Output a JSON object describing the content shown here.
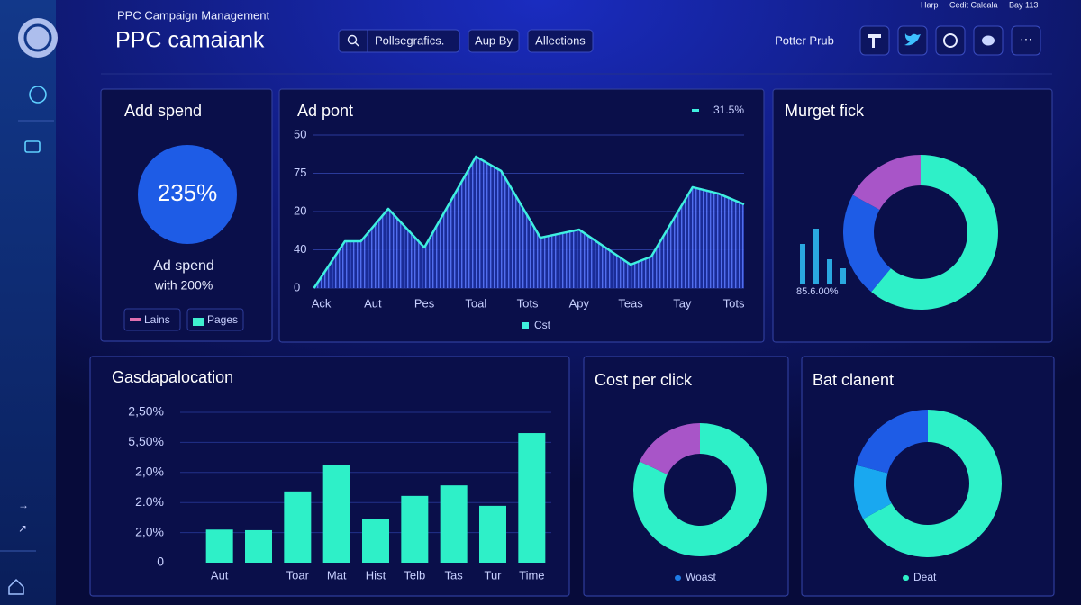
{
  "header": {
    "supertitle": "PPC Campaign Management",
    "title": "PPC camaiank",
    "search": "Pollsegrafics.",
    "buttons": [
      "Aup By",
      "Allections"
    ],
    "user": "Potter Prub",
    "top_links": [
      "Harp",
      "Cedit Calcala",
      "Bay 113"
    ]
  },
  "chart_data": [
    {
      "type": "kpi",
      "title": "Add spend",
      "values": [
        235
      ],
      "value_labels": [
        "235%"
      ],
      "color": "#1e5ce6",
      "label": "Ad spend",
      "sublabel": "with 200%",
      "legend": [
        {
          "name": "Lains",
          "color": "#e070b0"
        },
        {
          "name": "Pages",
          "color": "#40f0d0"
        }
      ]
    },
    {
      "type": "line",
      "title": "Ad pont",
      "annotation": "31.5%",
      "x": [
        -0.14,
        0.46,
        0.77,
        1.3,
        2.0,
        3.0,
        3.49,
        4.25,
        5.0,
        6.0,
        6.4,
        7.2,
        7.7,
        8.2
      ],
      "series": [
        {
          "name": "Cst",
          "color": "#3ff0e0",
          "values": [
            0,
            30.6,
            30.6,
            51.8,
            26.5,
            85.9,
            76.5,
            32.9,
            38.2,
            15.3,
            20.6,
            65.9,
            61.8,
            54.7
          ]
        }
      ],
      "fill": "#2a4fd0",
      "xlim": [
        -0.15,
        8.2
      ],
      "xticks": [
        {
          "value": 0,
          "label": "Ack"
        },
        {
          "value": 1,
          "label": "Aut"
        },
        {
          "value": 2,
          "label": "Pes"
        },
        {
          "value": 3,
          "label": "Toal"
        },
        {
          "value": 4,
          "label": "Tots"
        },
        {
          "value": 5,
          "label": "Apy"
        },
        {
          "value": 6,
          "label": "Teas"
        },
        {
          "value": 7,
          "label": "Tay"
        },
        {
          "value": 8,
          "label": "Tots"
        }
      ],
      "ylim": [
        0,
        100
      ],
      "yticks": [
        0,
        {
          "value": 25,
          "label": "40"
        },
        {
          "value": 50,
          "label": "20"
        },
        75,
        {
          "value": 100,
          "label": "50"
        }
      ],
      "grid": true
    },
    {
      "type": "donut",
      "title": "Murget fick",
      "values": [
        61,
        22,
        17
      ],
      "colors": [
        "#2ef0c8",
        "#1e5ce6",
        "#a855c8"
      ],
      "inset": {
        "type": "bar",
        "values": [
          45,
          62,
          28,
          18
        ],
        "color": "#2aa8e0",
        "label": "85.6.00%"
      }
    },
    {
      "type": "bar",
      "title": "Gasdapalocation",
      "categories": [
        "Aut",
        null,
        "Toar",
        "Mat",
        "Hist",
        "Telb",
        "Tas",
        "Tur",
        "Time"
      ],
      "values": [
        1.1,
        1.08,
        2.37,
        3.26,
        1.44,
        2.22,
        2.57,
        1.89,
        4.31
      ],
      "color": "#2ef0c8",
      "ylim": [
        0,
        5
      ],
      "yticks": [
        0,
        {
          "value": 1,
          "label": "2,0%"
        },
        {
          "value": 2,
          "label": "2.0%"
        },
        {
          "value": 3,
          "label": "2,0%"
        },
        {
          "value": 4,
          "label": "5,50%"
        },
        {
          "value": 5,
          "label": "2,50%"
        }
      ],
      "grid": true
    },
    {
      "type": "donut",
      "title": "Cost per click",
      "values": [
        82,
        18
      ],
      "colors": [
        "#2ef0c8",
        "#a855c8"
      ],
      "legend": "Woast",
      "legend_color": "#1e7ce6"
    },
    {
      "type": "donut",
      "title": "Bat clanent",
      "values": [
        67,
        12,
        21
      ],
      "colors": [
        "#2ef0c8",
        "#19a8f0",
        "#1e5ce6"
      ],
      "legend": "Deat",
      "legend_color": "#2ef0c8"
    }
  ]
}
